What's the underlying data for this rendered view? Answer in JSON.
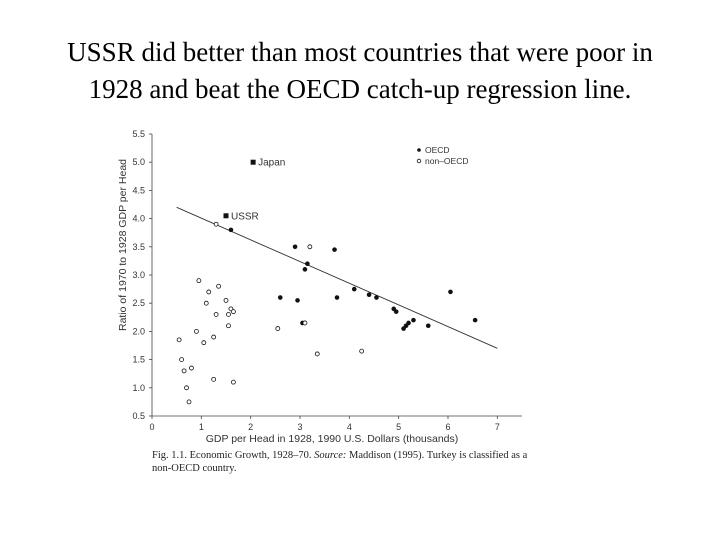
{
  "slide": {
    "title_line1": "USSR did better than most countries that were poor in",
    "title_line2": "1928 and beat the OECD catch-up regression line."
  },
  "chart_data": {
    "type": "scatter",
    "xlabel": "GDP per Head in 1928, 1990 U.S. Dollars (thousands)",
    "ylabel": "Ratio of 1970 to 1928 GDP per Head",
    "xlim": [
      0,
      7.5
    ],
    "ylim": [
      0.5,
      5.5
    ],
    "x_ticks": [
      0,
      1,
      2,
      3,
      4,
      5,
      6,
      7
    ],
    "y_ticks": [
      0.5,
      1.0,
      1.5,
      2.0,
      2.5,
      3.0,
      3.5,
      4.0,
      4.5,
      5.0,
      5.5
    ],
    "y_tick_labels": [
      "0.5",
      "1.0",
      "1.5",
      "2.0",
      "2.5",
      "3.0",
      "3.5",
      "4.0",
      "4.5",
      "5.0",
      "5.5"
    ],
    "legend": {
      "position": "top-right",
      "entries": [
        "OECD",
        "non–OECD"
      ]
    },
    "grid": false,
    "series": [
      {
        "name": "OECD",
        "marker": "filled-circle",
        "points": [
          [
            1.6,
            3.8
          ],
          [
            2.6,
            2.6
          ],
          [
            2.9,
            3.5
          ],
          [
            3.1,
            3.1
          ],
          [
            3.15,
            3.2
          ],
          [
            2.95,
            2.55
          ],
          [
            3.05,
            2.15
          ],
          [
            3.7,
            3.45
          ],
          [
            3.75,
            2.6
          ],
          [
            4.1,
            2.75
          ],
          [
            4.4,
            2.65
          ],
          [
            4.55,
            2.6
          ],
          [
            4.9,
            2.4
          ],
          [
            4.95,
            2.35
          ],
          [
            5.1,
            2.05
          ],
          [
            5.15,
            2.1
          ],
          [
            5.2,
            2.15
          ],
          [
            5.3,
            2.2
          ],
          [
            5.6,
            2.1
          ],
          [
            6.05,
            2.7
          ],
          [
            6.55,
            2.2
          ]
        ]
      },
      {
        "name": "non–OECD",
        "marker": "open-circle",
        "points": [
          [
            0.55,
            1.85
          ],
          [
            0.6,
            1.5
          ],
          [
            0.65,
            1.3
          ],
          [
            0.7,
            1.0
          ],
          [
            0.75,
            0.75
          ],
          [
            0.8,
            1.35
          ],
          [
            0.9,
            2.0
          ],
          [
            0.95,
            2.9
          ],
          [
            1.05,
            1.8
          ],
          [
            1.1,
            2.5
          ],
          [
            1.15,
            2.7
          ],
          [
            1.25,
            1.15
          ],
          [
            1.25,
            1.9
          ],
          [
            1.3,
            2.3
          ],
          [
            1.35,
            2.8
          ],
          [
            1.5,
            2.55
          ],
          [
            1.55,
            2.3
          ],
          [
            1.55,
            2.1
          ],
          [
            1.6,
            2.4
          ],
          [
            1.65,
            1.1
          ],
          [
            1.65,
            2.35
          ],
          [
            1.3,
            3.9
          ],
          [
            2.55,
            2.05
          ],
          [
            3.1,
            2.15
          ],
          [
            3.2,
            3.5
          ],
          [
            3.35,
            1.6
          ],
          [
            4.25,
            1.65
          ]
        ]
      }
    ],
    "regression_line": {
      "from": [
        0.5,
        4.2
      ],
      "to": [
        7.0,
        1.7
      ]
    },
    "annotations": [
      {
        "label": "Japan",
        "x": 2.05,
        "y": 5.0,
        "marker": "filled-square"
      },
      {
        "label": "USSR",
        "x": 1.5,
        "y": 4.05,
        "marker": "filled-square"
      }
    ]
  },
  "caption": {
    "prefix": "Fig. 1.1. Economic Growth, 1928–70. ",
    "source_label": "Source:",
    "suffix": " Maddison (1995). Turkey is classified as a non-OECD country."
  }
}
